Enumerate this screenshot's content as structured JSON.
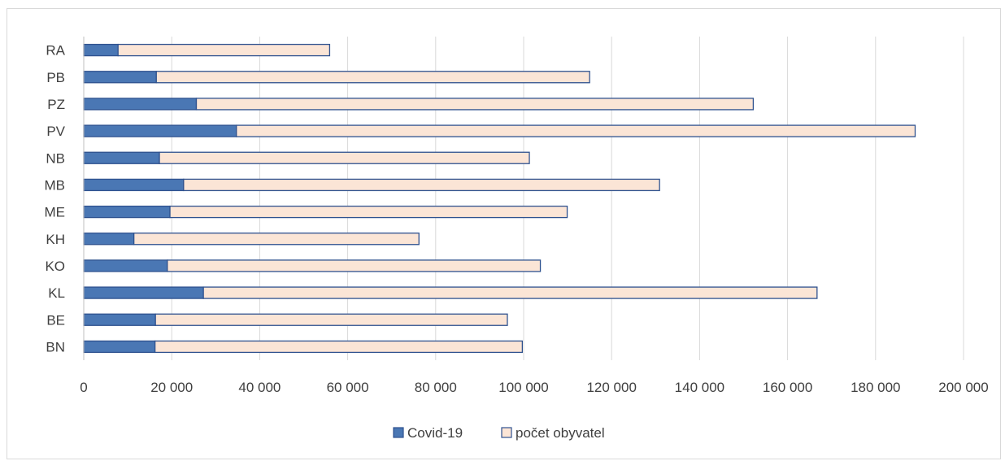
{
  "chart_data": {
    "type": "bar",
    "orientation": "horizontal",
    "stacked": true,
    "categories": [
      "BN",
      "BE",
      "KL",
      "KO",
      "KH",
      "ME",
      "MB",
      "NB",
      "PV",
      "PZ",
      "PB",
      "RA"
    ],
    "series": [
      {
        "name": "Covid-19",
        "color": "#4a77b4",
        "values": [
          16200,
          16300,
          27200,
          19000,
          11400,
          19600,
          22700,
          17200,
          34700,
          25600,
          16500,
          7800
        ]
      },
      {
        "name": "počet obyvatel",
        "color": "#fbe5d6",
        "values": [
          83500,
          80000,
          139500,
          84800,
          64800,
          90300,
          108200,
          84100,
          154300,
          126600,
          98500,
          48100
        ]
      }
    ],
    "xlim": [
      0,
      200000
    ],
    "xticks": [
      "0",
      "20 000",
      "40 000",
      "60 000",
      "80 000",
      "100 000",
      "120 000",
      "140 000",
      "160 000",
      "180 000",
      "200 000"
    ],
    "xtick_values": [
      0,
      20000,
      40000,
      60000,
      80000,
      100000,
      120000,
      140000,
      160000,
      180000,
      200000
    ],
    "grid": "vertical",
    "legend": "bottom",
    "bar_border_color": "#2f528f"
  }
}
